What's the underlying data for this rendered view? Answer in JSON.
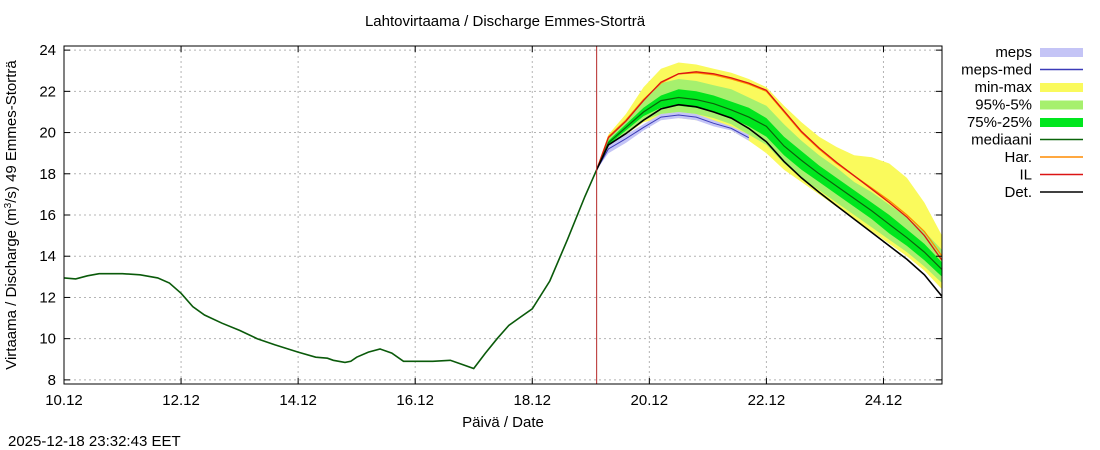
{
  "chart_data": {
    "type": "area",
    "title": "Lahtovirtaama / Discharge  Emmes-Storträ",
    "xlabel": "Päivä / Date",
    "ylabel_parts": [
      "Virtaama / Discharge (m",
      "3",
      "/s)  49 Emmes-Storträ"
    ],
    "ylim": [
      7.8,
      24.2
    ],
    "xlim": [
      10.0,
      25.0
    ],
    "yticks": [
      8,
      10,
      12,
      14,
      16,
      18,
      20,
      22,
      24
    ],
    "xticks": [
      {
        "day": 10,
        "label": "10.12"
      },
      {
        "day": 12,
        "label": "12.12"
      },
      {
        "day": 14,
        "label": "14.12"
      },
      {
        "day": 16,
        "label": "16.12"
      },
      {
        "day": 18,
        "label": "18.12"
      },
      {
        "day": 20,
        "label": "20.12"
      },
      {
        "day": 22,
        "label": "22.12"
      },
      {
        "day": 24,
        "label": "24.12"
      }
    ],
    "grid": true,
    "legend_position": "right",
    "forecast_start_day": 19.1,
    "legend": [
      {
        "key": "meps",
        "label": "meps",
        "style": "band",
        "color": "#c4c4f6"
      },
      {
        "key": "meps_med",
        "label": "meps-med",
        "style": "line",
        "color": "#3b3bb8"
      },
      {
        "key": "minmax",
        "label": "min-max",
        "style": "band",
        "color": "#fafa5c"
      },
      {
        "key": "p95_5",
        "label": "95%-5%",
        "style": "band",
        "color": "#a6f06e"
      },
      {
        "key": "p75_25",
        "label": "75%-25%",
        "style": "band",
        "color": "#00e61e"
      },
      {
        "key": "median",
        "label": "mediaani",
        "style": "line",
        "color": "#0a640a"
      },
      {
        "key": "har",
        "label": "Har.",
        "style": "line",
        "color": "#ff8c00"
      },
      {
        "key": "il",
        "label": "IL",
        "style": "line",
        "color": "#dc1414"
      },
      {
        "key": "det",
        "label": "Det.",
        "style": "line",
        "color": "#000000"
      }
    ],
    "series": {
      "observed": {
        "x": [
          10.0,
          10.2,
          10.4,
          10.6,
          10.8,
          11.0,
          11.3,
          11.6,
          11.8,
          12.0,
          12.2,
          12.4,
          12.7,
          13.0,
          13.3,
          13.6,
          14.0,
          14.3,
          14.5,
          14.6,
          14.8,
          14.9,
          15.0,
          15.2,
          15.4,
          15.6,
          15.8,
          16.0,
          16.3,
          16.6,
          16.8,
          17.0,
          17.2,
          17.4,
          17.6,
          17.8,
          18.0,
          18.3,
          18.6,
          18.9,
          19.1
        ],
        "values": [
          12.95,
          12.9,
          13.05,
          13.15,
          13.15,
          13.15,
          13.1,
          12.95,
          12.7,
          12.2,
          11.55,
          11.15,
          10.75,
          10.4,
          10.0,
          9.7,
          9.35,
          9.1,
          9.05,
          8.95,
          8.85,
          8.9,
          9.1,
          9.35,
          9.5,
          9.3,
          8.9,
          8.9,
          8.9,
          8.95,
          8.75,
          8.55,
          9.3,
          10.0,
          10.65,
          11.05,
          11.45,
          12.8,
          14.8,
          16.9,
          18.2
        ]
      },
      "forecast_x": [
        19.1,
        19.3,
        19.6,
        19.9,
        20.2,
        20.5,
        20.8,
        21.1,
        21.4,
        21.7,
        22.0,
        22.3,
        22.6,
        22.9,
        23.2,
        23.5,
        23.8,
        24.1,
        24.4,
        24.7,
        25.0
      ],
      "minmax_lo": [
        18.2,
        19.1,
        19.9,
        20.5,
        20.7,
        20.7,
        20.6,
        20.4,
        20.1,
        19.6,
        19.0,
        18.2,
        17.6,
        17.0,
        16.4,
        15.8,
        15.2,
        14.6,
        14.0,
        13.3,
        12.4
      ],
      "minmax_hi": [
        18.2,
        19.9,
        20.9,
        22.2,
        23.1,
        23.4,
        23.3,
        23.1,
        22.9,
        22.6,
        22.2,
        21.3,
        20.5,
        19.8,
        19.3,
        18.9,
        18.8,
        18.5,
        17.8,
        16.6,
        15.0
      ],
      "p95_lo": [
        18.2,
        19.3,
        20.0,
        20.6,
        20.9,
        21.0,
        20.9,
        20.7,
        20.4,
        19.9,
        19.4,
        18.5,
        17.8,
        17.2,
        16.6,
        16.0,
        15.4,
        14.8,
        14.2,
        13.5,
        12.7
      ],
      "p95_hi": [
        18.2,
        19.7,
        20.6,
        21.6,
        22.4,
        22.6,
        22.5,
        22.3,
        22.1,
        21.7,
        21.3,
        20.4,
        19.6,
        18.9,
        18.3,
        17.6,
        17.1,
        16.5,
        15.9,
        15.2,
        14.3
      ],
      "p75_lo": [
        18.2,
        19.4,
        20.1,
        20.8,
        21.2,
        21.3,
        21.2,
        21.0,
        20.7,
        20.3,
        19.8,
        18.9,
        18.2,
        17.6,
        17.0,
        16.4,
        15.8,
        15.1,
        14.5,
        13.8,
        13.0
      ],
      "p75_hi": [
        18.2,
        19.6,
        20.4,
        21.2,
        21.8,
        22.1,
        22.0,
        21.8,
        21.5,
        21.2,
        20.7,
        19.8,
        19.1,
        18.4,
        17.8,
        17.2,
        16.6,
        16.0,
        15.3,
        14.6,
        13.7
      ],
      "meps_lo": [
        18.2,
        19.0,
        19.5,
        20.1,
        20.6,
        20.7,
        20.6,
        20.3,
        20.1,
        19.6,
        null,
        null,
        null,
        null,
        null,
        null,
        null,
        null,
        null,
        null,
        null
      ],
      "meps_hi": [
        18.2,
        19.4,
        19.9,
        20.4,
        20.9,
        21.0,
        20.9,
        20.6,
        20.3,
        19.9,
        null,
        null,
        null,
        null,
        null,
        null,
        null,
        null,
        null,
        null,
        null
      ],
      "meps_med": [
        18.2,
        19.2,
        19.7,
        20.25,
        20.75,
        20.85,
        20.75,
        20.45,
        20.2,
        19.75,
        null,
        null,
        null,
        null,
        null,
        null,
        null,
        null,
        null,
        null,
        null
      ],
      "median": [
        18.2,
        19.5,
        20.25,
        21.0,
        21.55,
        21.7,
        21.6,
        21.4,
        21.1,
        20.75,
        20.3,
        19.35,
        18.65,
        18.0,
        17.4,
        16.8,
        16.2,
        15.55,
        14.9,
        14.2,
        13.35
      ],
      "har": [
        18.2,
        19.8,
        20.6,
        21.6,
        22.4,
        22.85,
        22.9,
        22.8,
        22.6,
        22.35,
        22.0,
        21.0,
        20.0,
        19.2,
        18.5,
        17.9,
        17.3,
        16.7,
        16.0,
        15.2,
        14.0
      ],
      "il": [
        18.2,
        19.75,
        20.55,
        21.55,
        22.45,
        22.85,
        22.95,
        22.85,
        22.65,
        22.4,
        22.05,
        21.05,
        20.05,
        19.25,
        18.55,
        17.9,
        17.25,
        16.6,
        15.9,
        15.0,
        13.8
      ],
      "det": [
        18.2,
        19.4,
        19.95,
        20.6,
        21.15,
        21.35,
        21.25,
        21.0,
        20.7,
        20.2,
        19.55,
        18.6,
        17.8,
        17.1,
        16.45,
        15.8,
        15.15,
        14.5,
        13.85,
        13.1,
        12.05
      ]
    },
    "colors": {
      "observed": "#0a5a0a",
      "forecast_marker": "#b42828",
      "grid": "#b4b4b4",
      "frame": "#000000"
    }
  },
  "timestamp": "2025-12-18 23:32:43 EET"
}
